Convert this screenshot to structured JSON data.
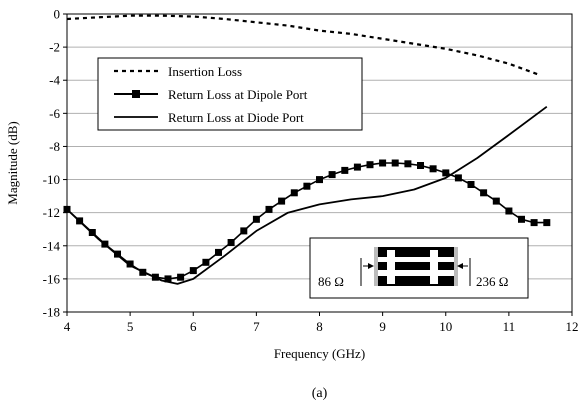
{
  "chart_data": {
    "type": "line",
    "xlabel": "Frequency (GHz)",
    "ylabel": "Magnitude (dB)",
    "xlim": [
      4,
      12
    ],
    "ylim": [
      -18,
      0
    ],
    "xticks": [
      "4",
      "5",
      "6",
      "7",
      "8",
      "9",
      "10",
      "11",
      "12"
    ],
    "yticks": [
      "0",
      "-2",
      "-4",
      "-6",
      "-8",
      "-10",
      "-12",
      "-14",
      "-16",
      "-18"
    ],
    "grid": "horizontal",
    "legend_position": "upper-left",
    "series": [
      {
        "name": "Insertion Loss",
        "style": "dashed",
        "x": [
          4.0,
          4.5,
          5.0,
          5.5,
          6.0,
          6.5,
          7.0,
          7.5,
          8.0,
          8.5,
          9.0,
          9.5,
          10.0,
          10.5,
          11.0,
          11.5
        ],
        "y": [
          -0.3,
          -0.2,
          -0.1,
          -0.1,
          -0.15,
          -0.3,
          -0.5,
          -0.7,
          -1.0,
          -1.2,
          -1.5,
          -1.8,
          -2.1,
          -2.5,
          -3.0,
          -3.7
        ]
      },
      {
        "name": "Return Loss at Dipole Port",
        "style": "solid-square-markers",
        "x": [
          4.0,
          4.2,
          4.4,
          4.6,
          4.8,
          5.0,
          5.2,
          5.4,
          5.6,
          5.8,
          6.0,
          6.2,
          6.4,
          6.6,
          6.8,
          7.0,
          7.2,
          7.4,
          7.6,
          7.8,
          8.0,
          8.2,
          8.4,
          8.6,
          8.8,
          9.0,
          9.2,
          9.4,
          9.6,
          9.8,
          10.0,
          10.2,
          10.4,
          10.6,
          10.8,
          11.0,
          11.2,
          11.4,
          11.6
        ],
        "y": [
          -11.8,
          -12.5,
          -13.2,
          -13.9,
          -14.5,
          -15.1,
          -15.6,
          -15.9,
          -16.0,
          -15.9,
          -15.5,
          -15.0,
          -14.4,
          -13.8,
          -13.1,
          -12.4,
          -11.8,
          -11.3,
          -10.8,
          -10.4,
          -10.0,
          -9.7,
          -9.45,
          -9.25,
          -9.1,
          -9.0,
          -9.0,
          -9.05,
          -9.15,
          -9.35,
          -9.6,
          -9.9,
          -10.3,
          -10.8,
          -11.3,
          -11.9,
          -12.4,
          -12.6,
          -12.6
        ]
      },
      {
        "name": "Return Loss at Diode Port",
        "style": "solid",
        "x": [
          4.0,
          4.5,
          5.0,
          5.5,
          5.75,
          6.0,
          6.5,
          7.0,
          7.5,
          8.0,
          8.5,
          9.0,
          9.5,
          10.0,
          10.5,
          11.0,
          11.6
        ],
        "y": [
          -11.8,
          -13.6,
          -15.2,
          -16.1,
          -16.3,
          -16.0,
          -14.6,
          -13.1,
          -12.0,
          -11.5,
          -11.2,
          -11.0,
          -10.6,
          -9.9,
          -8.7,
          -7.3,
          -5.6
        ]
      }
    ],
    "inset": {
      "left_label": "86 Ω",
      "right_label": "236 Ω"
    },
    "caption": "(a)"
  }
}
